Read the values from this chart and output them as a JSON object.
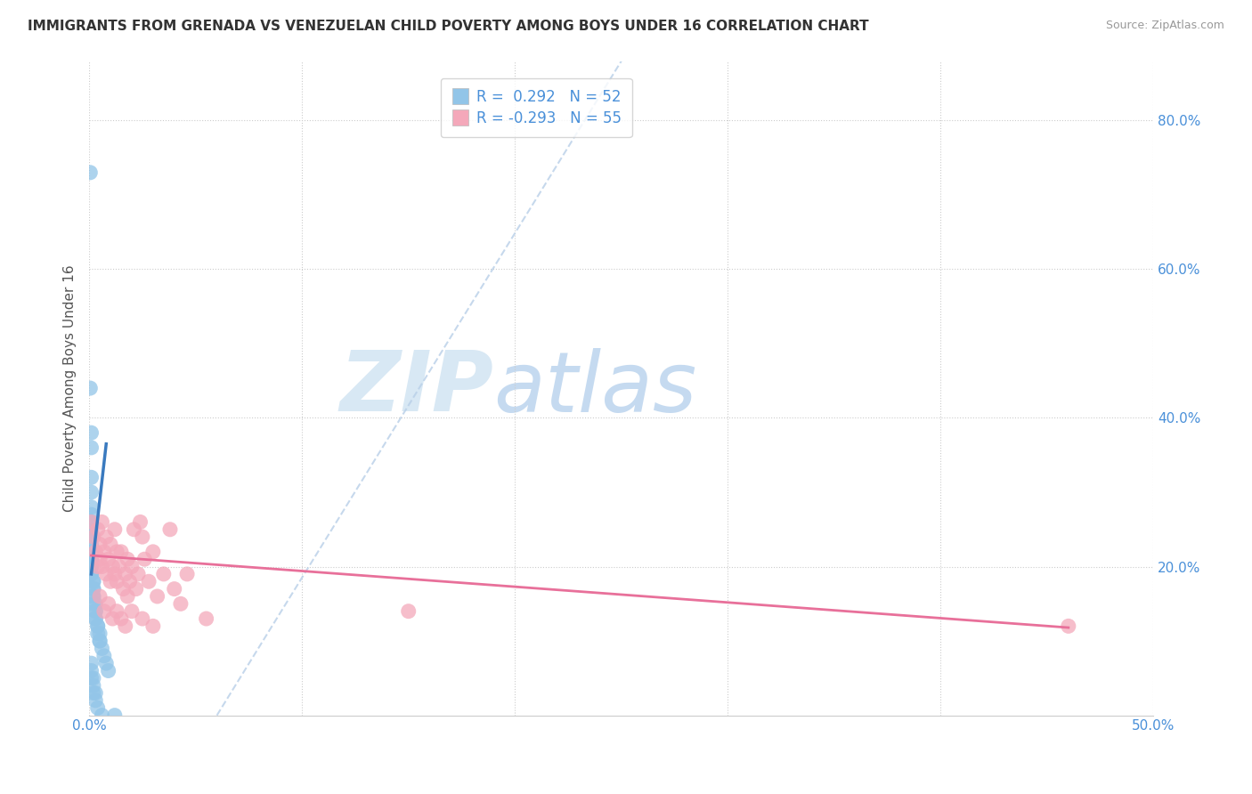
{
  "title": "IMMIGRANTS FROM GRENADA VS VENEZUELAN CHILD POVERTY AMONG BOYS UNDER 16 CORRELATION CHART",
  "source": "Source: ZipAtlas.com",
  "ylabel": "Child Poverty Among Boys Under 16",
  "R_blue": 0.292,
  "N_blue": 52,
  "R_pink": -0.293,
  "N_pink": 55,
  "color_blue": "#92c5e8",
  "color_pink": "#f4a8ba",
  "trendline_blue": "#3a7abf",
  "trendline_pink": "#e8709a",
  "trendline_dashed_color": "#b8cfe8",
  "watermark_color": "#d8e8f4",
  "xlim": [
    0.0,
    0.5
  ],
  "ylim": [
    0.0,
    0.88
  ],
  "blue_points": [
    [
      0.0005,
      0.73
    ],
    [
      0.0005,
      0.44
    ],
    [
      0.001,
      0.38
    ],
    [
      0.001,
      0.36
    ],
    [
      0.001,
      0.32
    ],
    [
      0.001,
      0.3
    ],
    [
      0.001,
      0.28
    ],
    [
      0.001,
      0.27
    ],
    [
      0.001,
      0.26
    ],
    [
      0.001,
      0.25
    ],
    [
      0.001,
      0.24
    ],
    [
      0.001,
      0.23
    ],
    [
      0.001,
      0.22
    ],
    [
      0.001,
      0.21
    ],
    [
      0.001,
      0.21
    ],
    [
      0.001,
      0.2
    ],
    [
      0.001,
      0.2
    ],
    [
      0.001,
      0.19
    ],
    [
      0.001,
      0.19
    ],
    [
      0.002,
      0.18
    ],
    [
      0.002,
      0.18
    ],
    [
      0.002,
      0.17
    ],
    [
      0.002,
      0.17
    ],
    [
      0.002,
      0.16
    ],
    [
      0.002,
      0.16
    ],
    [
      0.002,
      0.15
    ],
    [
      0.003,
      0.15
    ],
    [
      0.003,
      0.14
    ],
    [
      0.003,
      0.14
    ],
    [
      0.003,
      0.13
    ],
    [
      0.003,
      0.13
    ],
    [
      0.004,
      0.12
    ],
    [
      0.004,
      0.12
    ],
    [
      0.004,
      0.11
    ],
    [
      0.005,
      0.11
    ],
    [
      0.005,
      0.1
    ],
    [
      0.005,
      0.1
    ],
    [
      0.006,
      0.09
    ],
    [
      0.007,
      0.08
    ],
    [
      0.008,
      0.07
    ],
    [
      0.009,
      0.06
    ],
    [
      0.001,
      0.07
    ],
    [
      0.001,
      0.06
    ],
    [
      0.001,
      0.05
    ],
    [
      0.002,
      0.05
    ],
    [
      0.002,
      0.04
    ],
    [
      0.002,
      0.03
    ],
    [
      0.003,
      0.03
    ],
    [
      0.003,
      0.02
    ],
    [
      0.004,
      0.01
    ],
    [
      0.006,
      0.0
    ],
    [
      0.012,
      0.0
    ]
  ],
  "pink_points": [
    [
      0.001,
      0.26
    ],
    [
      0.002,
      0.24
    ],
    [
      0.003,
      0.22
    ],
    [
      0.004,
      0.25
    ],
    [
      0.004,
      0.2
    ],
    [
      0.005,
      0.23
    ],
    [
      0.005,
      0.21
    ],
    [
      0.006,
      0.26
    ],
    [
      0.006,
      0.2
    ],
    [
      0.007,
      0.22
    ],
    [
      0.008,
      0.24
    ],
    [
      0.008,
      0.19
    ],
    [
      0.009,
      0.21
    ],
    [
      0.01,
      0.23
    ],
    [
      0.01,
      0.18
    ],
    [
      0.011,
      0.2
    ],
    [
      0.012,
      0.25
    ],
    [
      0.012,
      0.19
    ],
    [
      0.013,
      0.22
    ],
    [
      0.013,
      0.18
    ],
    [
      0.014,
      0.2
    ],
    [
      0.015,
      0.22
    ],
    [
      0.016,
      0.17
    ],
    [
      0.017,
      0.19
    ],
    [
      0.018,
      0.21
    ],
    [
      0.018,
      0.16
    ],
    [
      0.019,
      0.18
    ],
    [
      0.02,
      0.2
    ],
    [
      0.021,
      0.25
    ],
    [
      0.022,
      0.17
    ],
    [
      0.023,
      0.19
    ],
    [
      0.024,
      0.26
    ],
    [
      0.025,
      0.24
    ],
    [
      0.026,
      0.21
    ],
    [
      0.028,
      0.18
    ],
    [
      0.03,
      0.22
    ],
    [
      0.032,
      0.16
    ],
    [
      0.035,
      0.19
    ],
    [
      0.038,
      0.25
    ],
    [
      0.04,
      0.17
    ],
    [
      0.043,
      0.15
    ],
    [
      0.046,
      0.19
    ],
    [
      0.005,
      0.16
    ],
    [
      0.007,
      0.14
    ],
    [
      0.009,
      0.15
    ],
    [
      0.011,
      0.13
    ],
    [
      0.013,
      0.14
    ],
    [
      0.015,
      0.13
    ],
    [
      0.017,
      0.12
    ],
    [
      0.02,
      0.14
    ],
    [
      0.025,
      0.13
    ],
    [
      0.03,
      0.12
    ],
    [
      0.055,
      0.13
    ],
    [
      0.15,
      0.14
    ],
    [
      0.46,
      0.12
    ]
  ]
}
